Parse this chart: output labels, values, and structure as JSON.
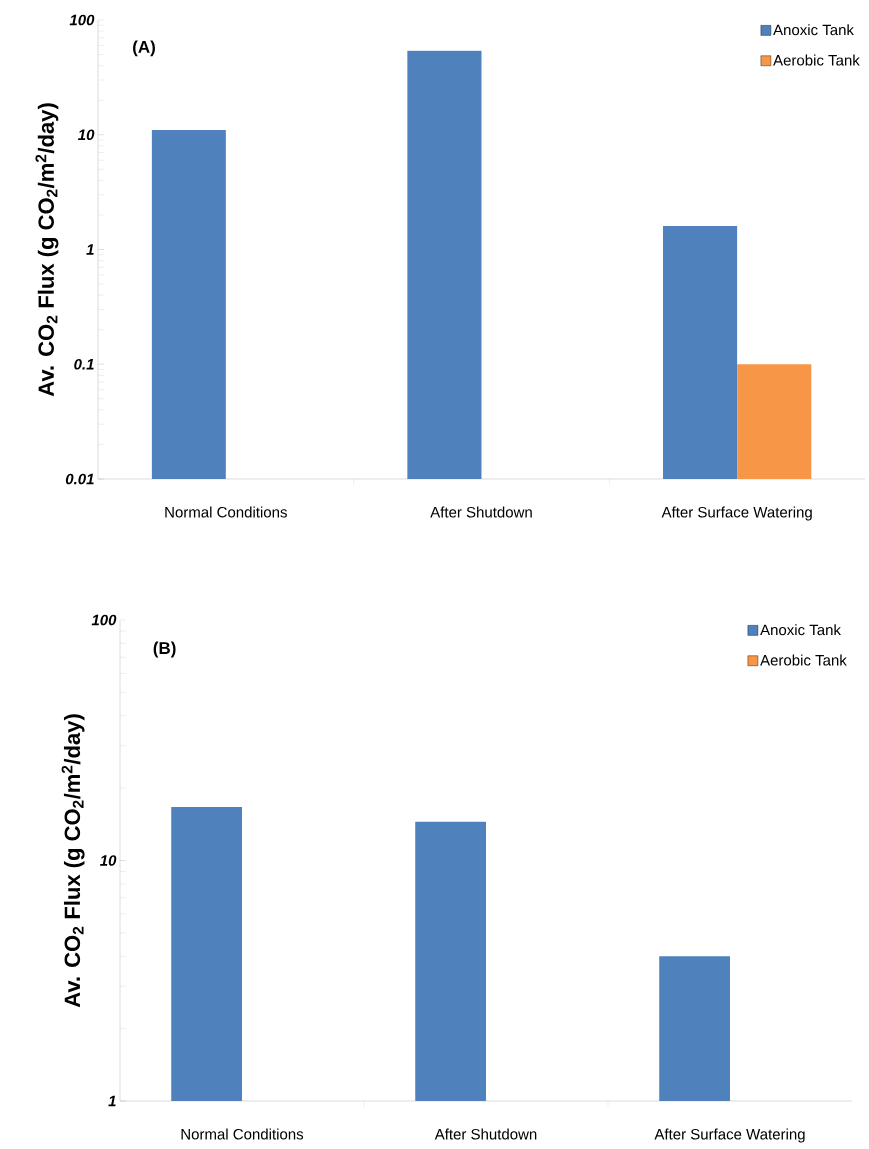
{
  "chart_data": [
    {
      "type": "bar",
      "title": "(A)",
      "categories": [
        "Normal Conditions",
        "After Shutdown",
        "After  Surface Watering"
      ],
      "series": [
        {
          "name": "Anoxic Tank",
          "color": "#4f81bd",
          "values": [
            11,
            54,
            1.6
          ]
        },
        {
          "name": "Aerobic Tank",
          "color": "#f79646",
          "values": [
            null,
            null,
            0.1
          ]
        }
      ],
      "ylabel": "Av. CO$_{2}$ Flux (g CO$_{2}$/m$^{2}$/day)",
      "log": true,
      "ylim": [
        0.01,
        100
      ],
      "yticks": [
        0.01,
        0.1,
        1,
        10,
        100
      ],
      "legend": "top right"
    },
    {
      "type": "bar",
      "title": "(B)",
      "categories": [
        "Normal Conditions",
        "After Shutdown",
        "After  Surface Watering"
      ],
      "series": [
        {
          "name": "Anoxic Tank",
          "color": "#4f81bd",
          "values": [
            16.7,
            14.5,
            4
          ]
        },
        {
          "name": "Aerobic Tank",
          "color": "#f79646",
          "values": [
            null,
            null,
            null
          ]
        }
      ],
      "ylabel": "Av. CO$_{2}$ Flux (g CO$_{2}$/m$^{2}$/day)",
      "log": true,
      "ylim": [
        1,
        100
      ],
      "yticks": [
        1,
        10,
        100
      ],
      "legend": "top right"
    }
  ]
}
